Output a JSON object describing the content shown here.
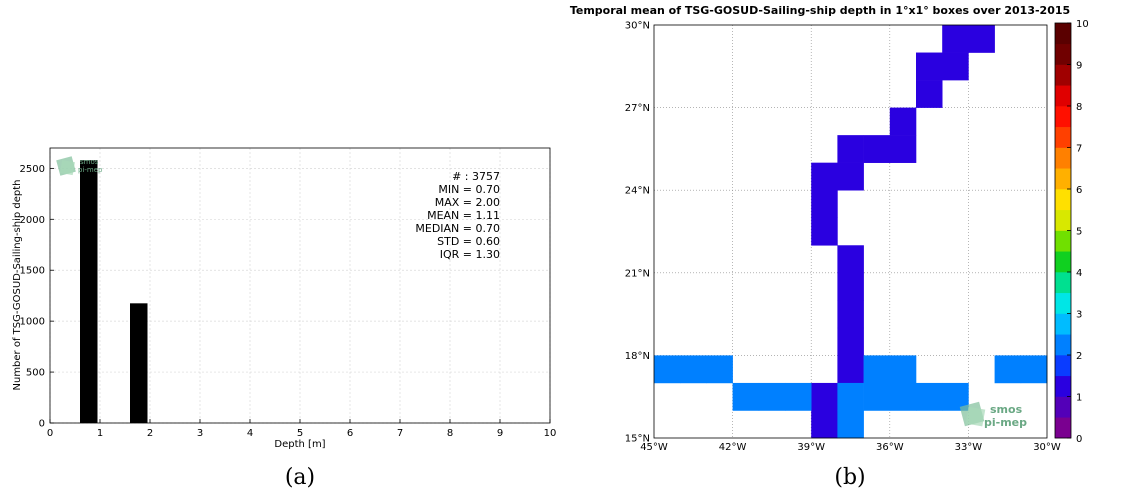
{
  "panels": {
    "a": "(a)",
    "b": "(b)"
  },
  "logo_text": {
    "line1": "smos",
    "line2": "pi-mep"
  },
  "chart_data": [
    {
      "type": "bar",
      "xlabel": "Depth [m]",
      "ylabel": "Number of TSG-GOSUD-Sailing-ship depth",
      "xlim": [
        0,
        10
      ],
      "ylim": [
        0,
        2700
      ],
      "xticks": [
        0,
        1,
        2,
        3,
        4,
        5,
        6,
        7,
        8,
        9,
        10
      ],
      "yticks": [
        0,
        500,
        1000,
        1500,
        2000,
        2500
      ],
      "grid": true,
      "bars": [
        {
          "x0": 0.6,
          "x1": 0.95,
          "value": 2580
        },
        {
          "x0": 1.6,
          "x1": 1.95,
          "value": 1175
        }
      ],
      "stats": [
        "# : 3757",
        "MIN = 0.70",
        "MAX =  2.00",
        "MEAN = 1.11",
        "MEDIAN = 0.70",
        "STD = 0.60",
        "IQR = 1.30"
      ]
    },
    {
      "type": "heatmap",
      "title": "Temporal mean of TSG-GOSUD-Sailing-ship depth in 1°x1° boxes over 2013-2015",
      "xlim": [
        -45,
        -30
      ],
      "ylim": [
        15,
        30
      ],
      "xticks": [
        "45°W",
        "42°W",
        "39°W",
        "36°W",
        "33°W",
        "30°W"
      ],
      "yticks": [
        "15°N",
        "18°N",
        "21°N",
        "24°N",
        "27°N",
        "30°N"
      ],
      "colorbar_ticks": [
        "0",
        "1",
        "2",
        "3",
        "4",
        "5",
        "6",
        "7",
        "8",
        "9",
        "10"
      ],
      "colorbar_range": [
        0,
        10
      ],
      "colors": {
        "purple": "#5300b8",
        "blue": "#0a3cff"
      },
      "grid": true,
      "cells": [
        {
          "lon": -34,
          "lat": 29,
          "value": 1.0
        },
        {
          "lon": -33,
          "lat": 29,
          "value": 1.0
        },
        {
          "lon": -35,
          "lat": 28,
          "value": 1.0
        },
        {
          "lon": -34,
          "lat": 28,
          "value": 1.0
        },
        {
          "lon": -35,
          "lat": 27,
          "value": 1.0
        },
        {
          "lon": -36,
          "lat": 26,
          "value": 1.0
        },
        {
          "lon": -38,
          "lat": 25,
          "value": 1.0
        },
        {
          "lon": -37,
          "lat": 25,
          "value": 1.0
        },
        {
          "lon": -36,
          "lat": 25,
          "value": 1.0
        },
        {
          "lon": -39,
          "lat": 24,
          "value": 1.0
        },
        {
          "lon": -38,
          "lat": 24,
          "value": 1.0
        },
        {
          "lon": -39,
          "lat": 23,
          "value": 1.0
        },
        {
          "lon": -39,
          "lat": 22,
          "value": 1.0
        },
        {
          "lon": -38,
          "lat": 21,
          "value": 1.0
        },
        {
          "lon": -38,
          "lat": 20,
          "value": 1.0
        },
        {
          "lon": -38,
          "lat": 19,
          "value": 1.0
        },
        {
          "lon": -38,
          "lat": 18,
          "value": 1.0
        },
        {
          "lon": -38,
          "lat": 17,
          "value": 1.0
        },
        {
          "lon": -39,
          "lat": 16,
          "value": 1.0
        },
        {
          "lon": -39,
          "lat": 15,
          "value": 1.0
        },
        {
          "lon": -45,
          "lat": 17,
          "value": 2.0
        },
        {
          "lon": -44,
          "lat": 17,
          "value": 2.0
        },
        {
          "lon": -43,
          "lat": 17,
          "value": 2.0
        },
        {
          "lon": -37,
          "lat": 17,
          "value": 2.0
        },
        {
          "lon": -36,
          "lat": 17,
          "value": 2.0
        },
        {
          "lon": -32,
          "lat": 17,
          "value": 2.0
        },
        {
          "lon": -31,
          "lat": 17,
          "value": 2.0
        },
        {
          "lon": -42,
          "lat": 16,
          "value": 2.0
        },
        {
          "lon": -41,
          "lat": 16,
          "value": 2.0
        },
        {
          "lon": -40,
          "lat": 16,
          "value": 2.0
        },
        {
          "lon": -38,
          "lat": 16,
          "value": 2.0
        },
        {
          "lon": -37,
          "lat": 16,
          "value": 2.0
        },
        {
          "lon": -36,
          "lat": 16,
          "value": 2.0
        },
        {
          "lon": -35,
          "lat": 16,
          "value": 2.0
        },
        {
          "lon": -34,
          "lat": 16,
          "value": 2.0
        },
        {
          "lon": -38,
          "lat": 15,
          "value": 2.0
        }
      ]
    }
  ]
}
